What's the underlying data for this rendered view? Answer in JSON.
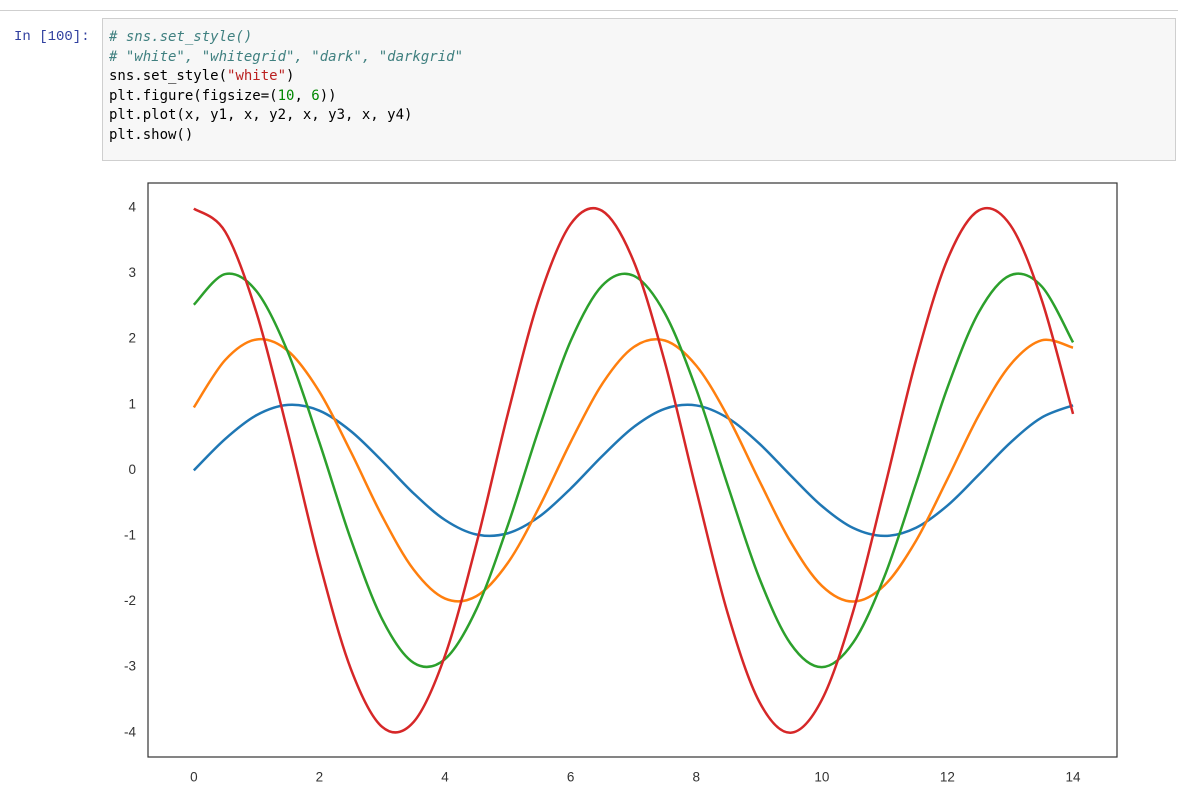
{
  "cell": {
    "prompt": "In [100]:",
    "lines": [
      "# sns.set_style()",
      "# \"white\", \"whitegrid\", \"dark\", \"darkgrid\"",
      "sns.set_style(\"white\")",
      "plt.figure(figsize=(10, 6))",
      "plt.plot(x, y1, x, y2, x, y3, x, y4)",
      "plt.show()"
    ]
  },
  "chart_data": {
    "type": "line",
    "x": [
      0,
      0.5,
      1,
      1.5,
      2,
      2.5,
      3,
      3.5,
      4,
      4.5,
      5,
      5.5,
      6,
      6.5,
      7,
      7.5,
      8,
      8.5,
      9,
      9.5,
      10,
      10.5,
      11,
      11.5,
      12,
      12.5,
      13,
      13.5,
      14
    ],
    "series": [
      {
        "color": "#1f77b4",
        "values": [
          0,
          0.479,
          0.841,
          0.997,
          0.909,
          0.598,
          0.141,
          -0.351,
          -0.757,
          -0.978,
          -0.959,
          -0.706,
          -0.279,
          0.215,
          0.657,
          0.938,
          0.989,
          0.798,
          0.412,
          -0.075,
          -0.544,
          -0.88,
          -1.0,
          -0.875,
          -0.537,
          -0.066,
          0.42,
          0.804,
          0.991
        ]
      },
      {
        "color": "#ff7f0e",
        "values": [
          0.959,
          1.683,
          1.995,
          1.819,
          1.197,
          0.282,
          -0.702,
          -1.514,
          -1.955,
          -1.918,
          -1.411,
          -0.559,
          0.43,
          1.314,
          1.876,
          1.979,
          1.596,
          0.824,
          -0.15,
          -1.088,
          -1.76,
          -2.0,
          -1.75,
          -1.073,
          -0.133,
          0.84,
          1.607,
          1.982,
          1.87
        ]
      },
      {
        "color": "#2ca02c",
        "values": [
          2.524,
          2.992,
          2.728,
          1.795,
          0.423,
          -1.052,
          -2.271,
          -2.934,
          -2.877,
          -2.117,
          -0.838,
          0.645,
          1.971,
          2.814,
          2.968,
          2.394,
          1.236,
          -0.225,
          -1.632,
          -2.64,
          -3.0,
          -2.624,
          -1.61,
          -0.199,
          1.26,
          2.411,
          2.973,
          2.805,
          1.951
        ]
      },
      {
        "color": "#d62728",
        "values": [
          3.99,
          3.637,
          2.394,
          0.565,
          -1.403,
          -3.027,
          -3.912,
          -3.836,
          -2.823,
          -1.118,
          0.862,
          2.628,
          3.754,
          3.957,
          3.194,
          1.65,
          -0.3,
          -2.177,
          -3.52,
          -4.0,
          -3.499,
          -2.146,
          -0.266,
          1.682,
          3.214,
          3.963,
          3.741,
          2.601,
          0.86
        ]
      }
    ],
    "xlim": [
      -0.73,
      14.7
    ],
    "ylim": [
      -4.37,
      4.38
    ],
    "xticks": [
      0,
      2,
      4,
      6,
      8,
      10,
      12,
      14
    ],
    "yticks": [
      -4,
      -3,
      -2,
      -1,
      0,
      1,
      2,
      3,
      4
    ],
    "grid": false
  }
}
